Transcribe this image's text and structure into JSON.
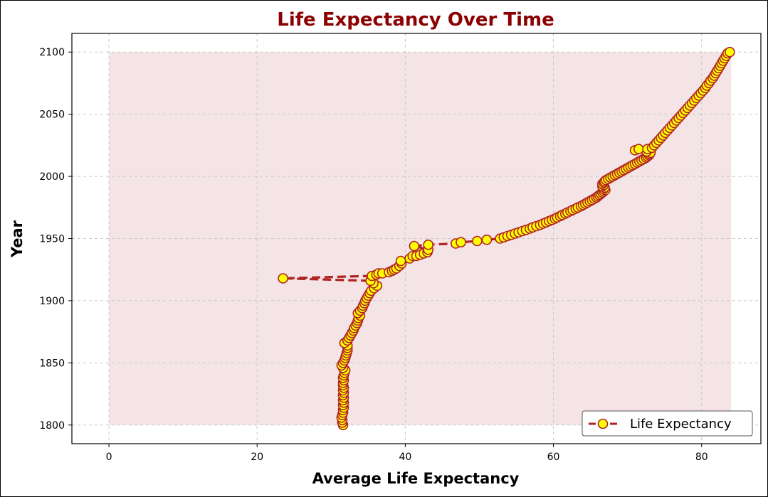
{
  "chart_data": {
    "type": "line",
    "title": "Life Expectancy Over Time",
    "xlabel": "Average Life Expectancy",
    "ylabel": "Year",
    "xlim": [
      -5,
      88
    ],
    "ylim": [
      1785,
      2115
    ],
    "xticks": [
      0,
      20,
      40,
      60,
      80
    ],
    "yticks": [
      1800,
      1850,
      1900,
      1950,
      2000,
      2050,
      2100
    ],
    "grid": true,
    "legend_position": "bottom-right",
    "fill_region": {
      "x_range": [
        0,
        84
      ],
      "y_range": [
        1800,
        2100
      ],
      "color": "#f4e4e6"
    },
    "colors": {
      "title": "#8b0000",
      "line": "#b22222",
      "marker_face": "#ffff00",
      "marker_edge": "#b22222"
    },
    "series": [
      {
        "name": "Life Expectancy",
        "points": [
          [
            31.6,
            1800
          ],
          [
            31.5,
            1802
          ],
          [
            31.5,
            1804
          ],
          [
            31.4,
            1806
          ],
          [
            31.5,
            1808
          ],
          [
            31.6,
            1810
          ],
          [
            31.6,
            1812
          ],
          [
            31.7,
            1814
          ],
          [
            31.6,
            1816
          ],
          [
            31.7,
            1818
          ],
          [
            31.6,
            1820
          ],
          [
            31.7,
            1822
          ],
          [
            31.6,
            1824
          ],
          [
            31.7,
            1826
          ],
          [
            31.6,
            1828
          ],
          [
            31.7,
            1830
          ],
          [
            31.6,
            1832
          ],
          [
            31.6,
            1834
          ],
          [
            31.7,
            1836
          ],
          [
            31.6,
            1838
          ],
          [
            31.7,
            1840
          ],
          [
            31.8,
            1842
          ],
          [
            31.9,
            1844
          ],
          [
            31.6,
            1846
          ],
          [
            31.4,
            1848
          ],
          [
            31.6,
            1850
          ],
          [
            31.8,
            1852
          ],
          [
            31.9,
            1854
          ],
          [
            32.0,
            1856
          ],
          [
            32.1,
            1858
          ],
          [
            32.2,
            1860
          ],
          [
            32.2,
            1862
          ],
          [
            32.2,
            1864
          ],
          [
            31.8,
            1866
          ],
          [
            32.2,
            1868
          ],
          [
            32.4,
            1870
          ],
          [
            32.6,
            1872
          ],
          [
            32.8,
            1874
          ],
          [
            33.0,
            1876
          ],
          [
            33.1,
            1878
          ],
          [
            33.3,
            1880
          ],
          [
            33.5,
            1882
          ],
          [
            33.6,
            1884
          ],
          [
            33.7,
            1886
          ],
          [
            33.9,
            1888
          ],
          [
            33.6,
            1890
          ],
          [
            33.9,
            1892
          ],
          [
            34.2,
            1894
          ],
          [
            34.3,
            1896
          ],
          [
            34.5,
            1898
          ],
          [
            34.6,
            1900
          ],
          [
            34.8,
            1902
          ],
          [
            35.0,
            1904
          ],
          [
            35.2,
            1906
          ],
          [
            35.4,
            1908
          ],
          [
            35.8,
            1910
          ],
          [
            36.2,
            1912
          ],
          [
            35.7,
            1914
          ],
          [
            35.3,
            1916
          ],
          [
            23.5,
            1918
          ],
          [
            35.5,
            1920
          ],
          [
            36.1,
            1921
          ],
          [
            36.4,
            1922
          ],
          [
            36.9,
            1922
          ],
          [
            37.8,
            1923
          ],
          [
            38.2,
            1924
          ],
          [
            38.5,
            1925
          ],
          [
            38.8,
            1926
          ],
          [
            39.2,
            1928
          ],
          [
            39.5,
            1930
          ],
          [
            39.4,
            1932
          ],
          [
            40.6,
            1934
          ],
          [
            41.0,
            1936
          ],
          [
            41.5,
            1936
          ],
          [
            42.0,
            1937
          ],
          [
            42.5,
            1938
          ],
          [
            43.0,
            1939
          ],
          [
            43.1,
            1941
          ],
          [
            41.2,
            1944
          ],
          [
            43.1,
            1945
          ],
          [
            46.8,
            1946
          ],
          [
            47.5,
            1947
          ],
          [
            49.7,
            1948
          ],
          [
            51.0,
            1949
          ],
          [
            52.8,
            1950
          ],
          [
            53.3,
            1951
          ],
          [
            53.8,
            1952
          ],
          [
            54.3,
            1953
          ],
          [
            54.8,
            1954
          ],
          [
            55.3,
            1955
          ],
          [
            55.8,
            1956
          ],
          [
            56.3,
            1957
          ],
          [
            56.8,
            1958
          ],
          [
            57.2,
            1959
          ],
          [
            57.7,
            1960
          ],
          [
            58.2,
            1961
          ],
          [
            58.6,
            1962
          ],
          [
            59.0,
            1963
          ],
          [
            59.4,
            1964
          ],
          [
            59.8,
            1965
          ],
          [
            60.2,
            1966
          ],
          [
            60.5,
            1967
          ],
          [
            60.9,
            1968
          ],
          [
            61.2,
            1969
          ],
          [
            61.6,
            1970
          ],
          [
            61.9,
            1971
          ],
          [
            62.3,
            1972
          ],
          [
            62.6,
            1973
          ],
          [
            63.0,
            1974
          ],
          [
            63.3,
            1975
          ],
          [
            63.7,
            1976
          ],
          [
            64.0,
            1977
          ],
          [
            64.3,
            1978
          ],
          [
            64.6,
            1979
          ],
          [
            64.9,
            1980
          ],
          [
            65.2,
            1981
          ],
          [
            65.5,
            1982
          ],
          [
            65.8,
            1983
          ],
          [
            66.0,
            1984
          ],
          [
            66.2,
            1985
          ],
          [
            66.4,
            1986
          ],
          [
            66.6,
            1987
          ],
          [
            66.8,
            1988
          ],
          [
            67.0,
            1989
          ],
          [
            66.8,
            1990
          ],
          [
            66.9,
            1991
          ],
          [
            66.6,
            1992
          ],
          [
            66.8,
            1993
          ],
          [
            66.6,
            1994
          ],
          [
            66.8,
            1995
          ],
          [
            66.9,
            1996
          ],
          [
            67.1,
            1997
          ],
          [
            67.4,
            1998
          ],
          [
            67.7,
            1999
          ],
          [
            68.0,
            2000
          ],
          [
            68.3,
            2001
          ],
          [
            68.6,
            2002
          ],
          [
            68.9,
            2003
          ],
          [
            69.2,
            2004
          ],
          [
            69.5,
            2005
          ],
          [
            69.8,
            2006
          ],
          [
            70.1,
            2007
          ],
          [
            70.4,
            2008
          ],
          [
            70.7,
            2009
          ],
          [
            71.0,
            2010
          ],
          [
            71.3,
            2011
          ],
          [
            71.6,
            2012
          ],
          [
            71.9,
            2013
          ],
          [
            72.2,
            2014
          ],
          [
            72.5,
            2015
          ],
          [
            72.7,
            2016
          ],
          [
            72.9,
            2017
          ],
          [
            73.0,
            2018
          ],
          [
            73.1,
            2019
          ],
          [
            72.6,
            2020
          ],
          [
            71.0,
            2021
          ],
          [
            71.5,
            2022
          ],
          [
            72.7,
            2022
          ],
          [
            73.3,
            2023
          ],
          [
            73.6,
            2025
          ],
          [
            73.9,
            2027
          ],
          [
            74.2,
            2029
          ],
          [
            74.5,
            2031
          ],
          [
            74.8,
            2033
          ],
          [
            75.1,
            2035
          ],
          [
            75.4,
            2037
          ],
          [
            75.7,
            2039
          ],
          [
            76.0,
            2041
          ],
          [
            76.3,
            2043
          ],
          [
            76.6,
            2045
          ],
          [
            76.9,
            2047
          ],
          [
            77.2,
            2049
          ],
          [
            77.5,
            2051
          ],
          [
            77.8,
            2053
          ],
          [
            78.1,
            2055
          ],
          [
            78.4,
            2057
          ],
          [
            78.7,
            2059
          ],
          [
            79.0,
            2061
          ],
          [
            79.3,
            2063
          ],
          [
            79.6,
            2065
          ],
          [
            79.9,
            2067
          ],
          [
            80.2,
            2069
          ],
          [
            80.5,
            2071
          ],
          [
            80.7,
            2073
          ],
          [
            81.0,
            2075
          ],
          [
            81.2,
            2077
          ],
          [
            81.5,
            2079
          ],
          [
            81.7,
            2081
          ],
          [
            81.9,
            2083
          ],
          [
            82.1,
            2085
          ],
          [
            82.3,
            2087
          ],
          [
            82.5,
            2089
          ],
          [
            82.7,
            2091
          ],
          [
            82.9,
            2093
          ],
          [
            83.1,
            2095
          ],
          [
            83.3,
            2097
          ],
          [
            83.5,
            2099
          ],
          [
            83.8,
            2100
          ]
        ]
      }
    ]
  }
}
